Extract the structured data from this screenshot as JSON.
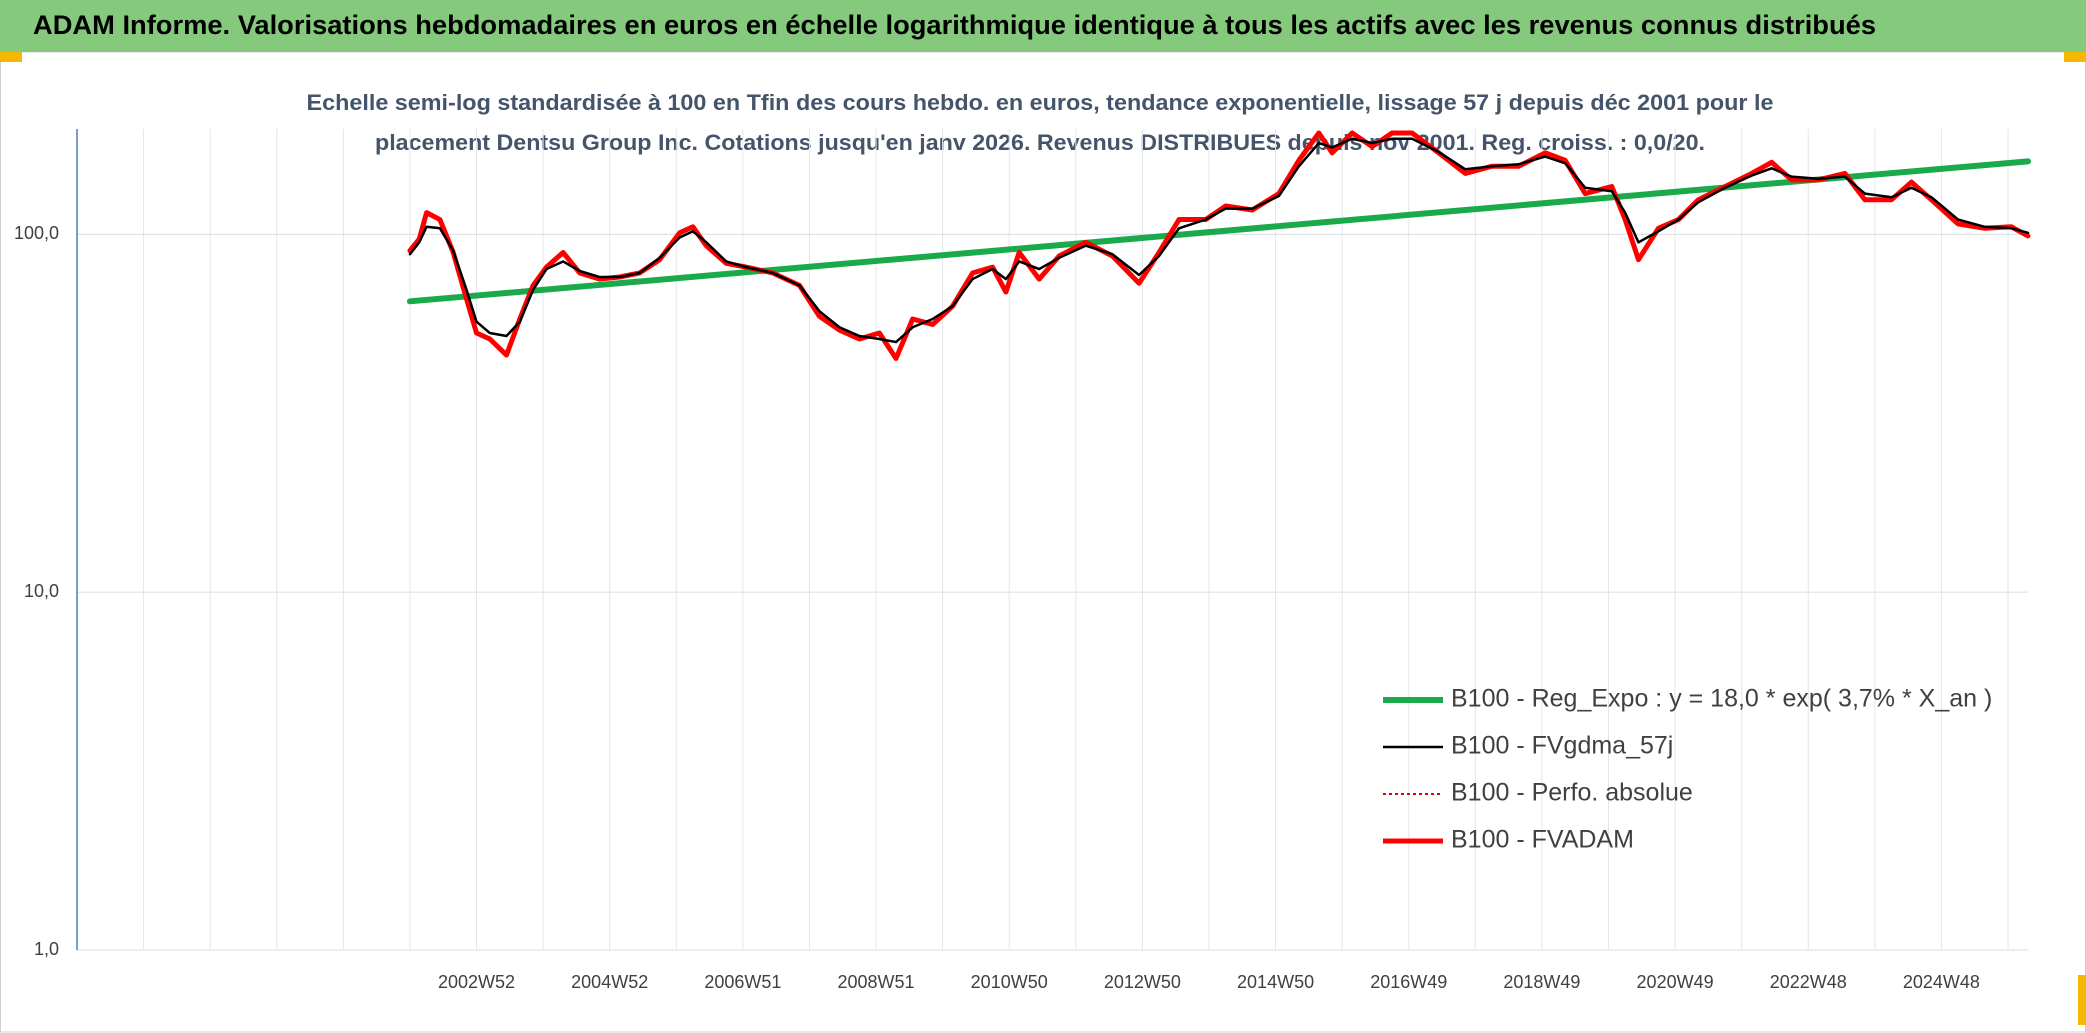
{
  "chart_data": {
    "type": "line",
    "title": "ADAM Informe. Valorisations hebdomadaires en euros en échelle logarithmique identique à tous les actifs avec les revenus connus distribués",
    "subtitle": [
      "Echelle semi-log standardisée à 100 en Tfin des cours hebdo. en euros, tendance exponentielle, lissage 57 j depuis déc 2001 pour le",
      "placement Dentsu Group Inc. Cotations jusqu'en janv 2026. Revenus DISTRIBUES depuis nov 2001. Reg. croiss. : 0,0/20."
    ],
    "xlim": [
      1997,
      2026.3
    ],
    "xticks": [
      {
        "value": 2003.0,
        "label": "2002W52"
      },
      {
        "value": 2005.0,
        "label": "2004W52"
      },
      {
        "value": 2007.0,
        "label": "2006W51"
      },
      {
        "value": 2009.0,
        "label": "2008W51"
      },
      {
        "value": 2011.0,
        "label": "2010W50"
      },
      {
        "value": 2013.0,
        "label": "2012W50"
      },
      {
        "value": 2015.0,
        "label": "2014W50"
      },
      {
        "value": 2017.0,
        "label": "2016W49"
      },
      {
        "value": 2019.0,
        "label": "2018W49"
      },
      {
        "value": 2021.0,
        "label": "2020W49"
      },
      {
        "value": 2023.0,
        "label": "2022W48"
      },
      {
        "value": 2025.0,
        "label": "2024W48"
      }
    ],
    "ylim": [
      1,
      197
    ],
    "yticks": [
      {
        "value": 1,
        "label": "1,0"
      },
      {
        "value": 10,
        "label": "10,0"
      },
      {
        "value": 100,
        "label": "100,0"
      }
    ],
    "log_scale_y": true,
    "grid": true,
    "series": [
      {
        "name": "B100 - Reg_Expo : y = 18,0 * exp( 3,7% *  X_an )",
        "color": "#1aaa4b",
        "width": 6,
        "dash": "none",
        "x": [
          2002.0,
          2026.3
        ],
        "values": [
          65,
          160
        ]
      },
      {
        "name": "B100 - FVgdma_57j",
        "color": "#000000",
        "width": 2.5,
        "dash": "none",
        "x": [
          2002.0,
          2002.14,
          2002.25,
          2002.45,
          2002.65,
          2002.85,
          2003.0,
          2003.2,
          2003.45,
          2003.65,
          2003.85,
          2004.05,
          2004.3,
          2004.55,
          2004.85,
          2005.15,
          2005.45,
          2005.75,
          2006.05,
          2006.25,
          2006.45,
          2006.75,
          2007.05,
          2007.45,
          2007.85,
          2008.15,
          2008.45,
          2008.75,
          2009.05,
          2009.3,
          2009.55,
          2009.85,
          2010.15,
          2010.45,
          2010.75,
          2010.95,
          2011.15,
          2011.45,
          2011.75,
          2012.15,
          2012.55,
          2012.95,
          2013.25,
          2013.55,
          2013.95,
          2014.25,
          2014.65,
          2015.05,
          2015.35,
          2015.65,
          2015.85,
          2016.15,
          2016.45,
          2016.75,
          2017.05,
          2017.45,
          2017.85,
          2018.25,
          2018.65,
          2019.05,
          2019.35,
          2019.65,
          2020.05,
          2020.25,
          2020.45,
          2020.75,
          2021.05,
          2021.35,
          2021.75,
          2022.15,
          2022.45,
          2022.75,
          2023.15,
          2023.55,
          2023.85,
          2024.25,
          2024.55,
          2024.85,
          2025.25,
          2025.65,
          2026.05,
          2026.3
        ],
        "values": [
          88,
          95,
          105,
          104,
          90,
          70,
          57,
          53,
          52,
          57,
          70,
          80,
          84,
          79,
          76,
          76,
          78,
          86,
          98,
          102,
          95,
          84,
          81,
          78,
          72,
          61,
          55,
          52,
          51,
          50,
          55,
          58,
          63,
          75,
          80,
          75,
          84,
          80,
          86,
          93,
          88,
          77,
          87,
          104,
          110,
          118,
          118,
          128,
          155,
          180,
          175,
          185,
          180,
          185,
          185,
          170,
          152,
          155,
          157,
          165,
          158,
          135,
          132,
          115,
          95,
          102,
          110,
          123,
          135,
          146,
          153,
          145,
          143,
          145,
          130,
          127,
          135,
          127,
          110,
          105,
          104,
          101
        ]
      },
      {
        "name": "B100 - Perfo. absolue",
        "color": "#e00000",
        "width": 2,
        "dash": "3 3",
        "x": [
          2002.0,
          2002.14,
          2002.25,
          2002.45,
          2002.65,
          2002.85,
          2003.0,
          2003.2,
          2003.45,
          2003.65,
          2003.85,
          2004.05,
          2004.3,
          2004.55,
          2004.85,
          2005.15,
          2005.45,
          2005.75,
          2006.05,
          2006.25,
          2006.45,
          2006.75,
          2007.05,
          2007.45,
          2007.85,
          2008.15,
          2008.45,
          2008.75,
          2009.05,
          2009.3,
          2009.55,
          2009.85,
          2010.15,
          2010.45,
          2010.75,
          2010.95,
          2011.15,
          2011.45,
          2011.75,
          2012.15,
          2012.55,
          2012.95,
          2013.25,
          2013.55,
          2013.95,
          2014.25,
          2014.65,
          2015.05,
          2015.35,
          2015.65,
          2015.85,
          2016.15,
          2016.45,
          2016.75,
          2017.05,
          2017.45,
          2017.85,
          2018.25,
          2018.65,
          2019.05,
          2019.35,
          2019.65,
          2020.05,
          2020.25,
          2020.45,
          2020.75,
          2021.05,
          2021.35,
          2021.75,
          2022.15,
          2022.45,
          2022.75,
          2023.15,
          2023.55,
          2023.85,
          2024.25,
          2024.55,
          2024.85,
          2025.25,
          2025.65,
          2026.05,
          2026.3
        ],
        "values": [
          90,
          97,
          115,
          110,
          89,
          66,
          53,
          51,
          46,
          58,
          72,
          81,
          89,
          78,
          75,
          76,
          78,
          85,
          101,
          105,
          93,
          83,
          81,
          78,
          72,
          59,
          54,
          51,
          53,
          45,
          58,
          56,
          63,
          78,
          81,
          69,
          89,
          75,
          87,
          95,
          87,
          73,
          89,
          110,
          110,
          120,
          117,
          130,
          161,
          192,
          169,
          192,
          176,
          192,
          192,
          169,
          148,
          155,
          155,
          169,
          161,
          130,
          136,
          110,
          85,
          104,
          110,
          125,
          136,
          148,
          159,
          142,
          142,
          148,
          125,
          125,
          140,
          125,
          107,
          104,
          105,
          99
        ]
      },
      {
        "name": "B100 - FVADAM",
        "color": "#ff0000",
        "width": 5,
        "dash": "none",
        "x": [
          2002.0,
          2002.14,
          2002.25,
          2002.45,
          2002.65,
          2002.85,
          2003.0,
          2003.2,
          2003.45,
          2003.65,
          2003.85,
          2004.05,
          2004.3,
          2004.55,
          2004.85,
          2005.15,
          2005.45,
          2005.75,
          2006.05,
          2006.25,
          2006.45,
          2006.75,
          2007.05,
          2007.45,
          2007.85,
          2008.15,
          2008.45,
          2008.75,
          2009.05,
          2009.3,
          2009.55,
          2009.85,
          2010.15,
          2010.45,
          2010.75,
          2010.95,
          2011.15,
          2011.45,
          2011.75,
          2012.15,
          2012.55,
          2012.95,
          2013.25,
          2013.55,
          2013.95,
          2014.25,
          2014.65,
          2015.05,
          2015.35,
          2015.65,
          2015.85,
          2016.15,
          2016.45,
          2016.75,
          2017.05,
          2017.45,
          2017.85,
          2018.25,
          2018.65,
          2019.05,
          2019.35,
          2019.65,
          2020.05,
          2020.25,
          2020.45,
          2020.75,
          2021.05,
          2021.35,
          2021.75,
          2022.15,
          2022.45,
          2022.75,
          2023.15,
          2023.55,
          2023.85,
          2024.25,
          2024.55,
          2024.85,
          2025.25,
          2025.65,
          2026.05,
          2026.3
        ],
        "values": [
          90,
          97,
          115,
          110,
          89,
          66,
          53,
          51,
          46,
          58,
          72,
          81,
          89,
          78,
          75,
          76,
          78,
          85,
          101,
          105,
          93,
          83,
          81,
          78,
          72,
          59,
          54,
          51,
          53,
          45,
          58,
          56,
          63,
          78,
          81,
          69,
          89,
          75,
          87,
          95,
          87,
          73,
          89,
          110,
          110,
          120,
          117,
          130,
          161,
          192,
          169,
          192,
          176,
          192,
          192,
          169,
          148,
          155,
          155,
          169,
          161,
          130,
          136,
          110,
          85,
          104,
          110,
          125,
          136,
          148,
          159,
          142,
          142,
          148,
          125,
          125,
          140,
          125,
          107,
          104,
          105,
          99
        ]
      }
    ]
  }
}
